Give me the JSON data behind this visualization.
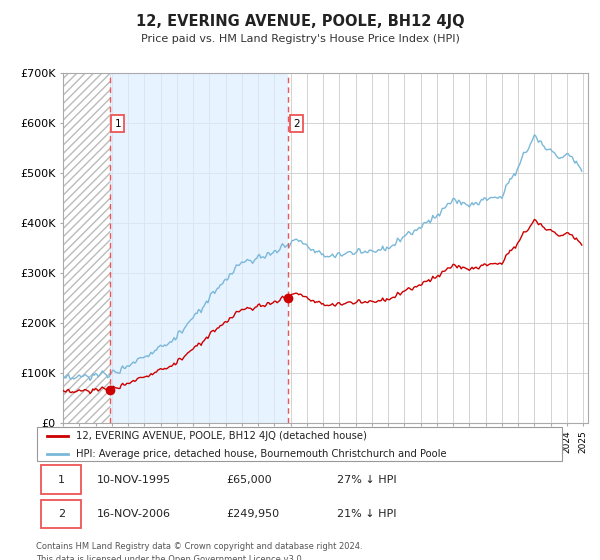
{
  "title": "12, EVERING AVENUE, POOLE, BH12 4JQ",
  "subtitle": "Price paid vs. HM Land Registry's House Price Index (HPI)",
  "hpi_label": "HPI: Average price, detached house, Bournemouth Christchurch and Poole",
  "property_label": "12, EVERING AVENUE, POOLE, BH12 4JQ (detached house)",
  "footer": "Contains HM Land Registry data © Crown copyright and database right 2024.\nThis data is licensed under the Open Government Licence v3.0.",
  "sale1_label": "1",
  "sale1_date": "10-NOV-1995",
  "sale1_price": "£65,000",
  "sale1_hpi": "27% ↓ HPI",
  "sale1_year": 1995.87,
  "sale1_value": 65000,
  "sale2_label": "2",
  "sale2_date": "16-NOV-2006",
  "sale2_price": "£249,950",
  "sale2_hpi": "21% ↓ HPI",
  "sale2_year": 2006.87,
  "sale2_value": 249950,
  "hpi_color": "#7ab8d9",
  "sale_color": "#cc0000",
  "vline_color": "#ee5555",
  "grid_color": "#cccccc",
  "fill_between_color": "#ddeeff",
  "hatch_color": "#bbbbbb",
  "ylim_min": 0,
  "ylim_max": 700000,
  "yticks": [
    0,
    100000,
    200000,
    300000,
    400000,
    500000,
    600000,
    700000
  ],
  "ytick_labels": [
    "£0",
    "£100K",
    "£200K",
    "£300K",
    "£400K",
    "£500K",
    "£600K",
    "£700K"
  ],
  "xmin": 1993,
  "xmax": 2025.3
}
